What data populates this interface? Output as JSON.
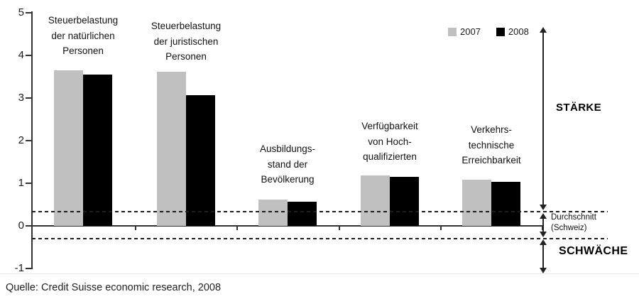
{
  "chart_data": {
    "type": "bar",
    "title": "",
    "categories": [
      [
        "Steuerbelastung",
        "der natürlichen",
        "Personen"
      ],
      [
        "Steuerbelastung",
        "der juristischen",
        "Personen"
      ],
      [
        "Ausbildungs-",
        "stand der",
        "Bevölkerung"
      ],
      [
        "Verfügbarkeit",
        "von Hoch-",
        "qualifizierten"
      ],
      [
        "Verkehrs-",
        "technische",
        "Erreichbarkeit"
      ]
    ],
    "series": [
      {
        "name": "2007",
        "color": "#c0c0c0",
        "values": [
          3.65,
          3.62,
          0.62,
          1.18,
          1.08
        ]
      },
      {
        "name": "2008",
        "color": "#000000",
        "values": [
          3.55,
          3.07,
          0.57,
          1.15,
          1.03
        ]
      }
    ],
    "ylim": [
      -1,
      5
    ],
    "yticks": [
      5,
      4,
      3,
      2,
      1,
      0,
      -1
    ],
    "reference_lines": [
      0.33,
      -0.3
    ],
    "grid": false,
    "legend_position": "top-right"
  },
  "legend": {
    "items": [
      {
        "label": "2007",
        "color": "#c0c0c0"
      },
      {
        "label": "2008",
        "color": "#000000"
      }
    ]
  },
  "annotations": {
    "strength": "STÄRKE",
    "weakness": "SCHWÄCHE",
    "average_line1": "Durchschnitt",
    "average_line2": "(Schweiz)"
  },
  "source": "Quelle: Credit Suisse economic research, 2008"
}
